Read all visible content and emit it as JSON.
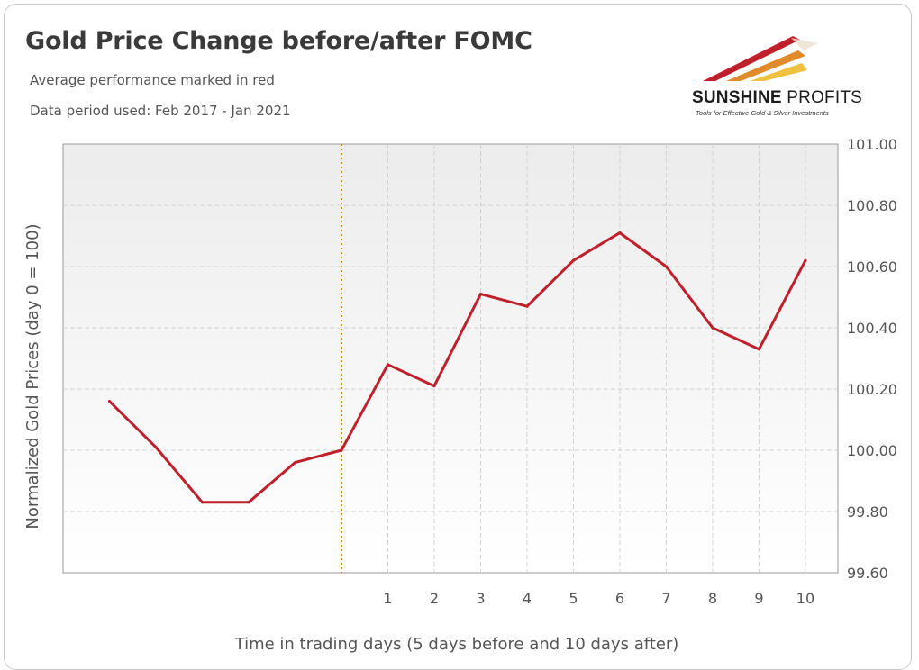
{
  "title": "Gold Price Change before/after FOMC",
  "subtitles": [
    "Average performance marked in red",
    "Data period used: Feb 2017 - Jan 2021"
  ],
  "logo": {
    "name_bold": "SUNSHINE",
    "name_light": "PROFITS",
    "tagline": "Tools for Effective Gold & Silver Investments"
  },
  "colors": {
    "line": "#c0202b",
    "event_marker": "#b8860b",
    "plot_bg": "#f2f2f2"
  },
  "chart_data": {
    "type": "line",
    "title": "Gold Price Change before/after FOMC",
    "xlabel": "Time in trading days (5 days before and 10 days after)",
    "ylabel": "Normalized Gold Prices (day 0 = 100)",
    "x": [
      -5,
      -4,
      -3,
      -2,
      -1,
      0,
      1,
      2,
      3,
      4,
      5,
      6,
      7,
      8,
      9,
      10
    ],
    "x_tick_labels": [
      "1",
      "2",
      "3",
      "4",
      "5",
      "6",
      "7",
      "8",
      "9",
      "10"
    ],
    "x_tick_values": [
      1,
      2,
      3,
      4,
      5,
      6,
      7,
      8,
      9,
      10
    ],
    "xlim": [
      -6,
      10.7
    ],
    "ylim": [
      99.6,
      101.0
    ],
    "y_ticks": [
      99.6,
      99.8,
      100.0,
      100.2,
      100.4,
      100.6,
      100.8,
      101.0
    ],
    "y_tick_labels": [
      "99.60",
      "99.80",
      "100.00",
      "100.20",
      "100.40",
      "100.60",
      "100.80",
      "101.00"
    ],
    "y_axis_side": "right",
    "event_line_x": 0,
    "grid": true,
    "series": [
      {
        "values": [
          100.16,
          100.01,
          99.83,
          99.83,
          99.96,
          100.0,
          100.28,
          100.21,
          100.51,
          100.47,
          100.62,
          100.71,
          100.6,
          100.4,
          100.33,
          100.62
        ]
      }
    ]
  }
}
